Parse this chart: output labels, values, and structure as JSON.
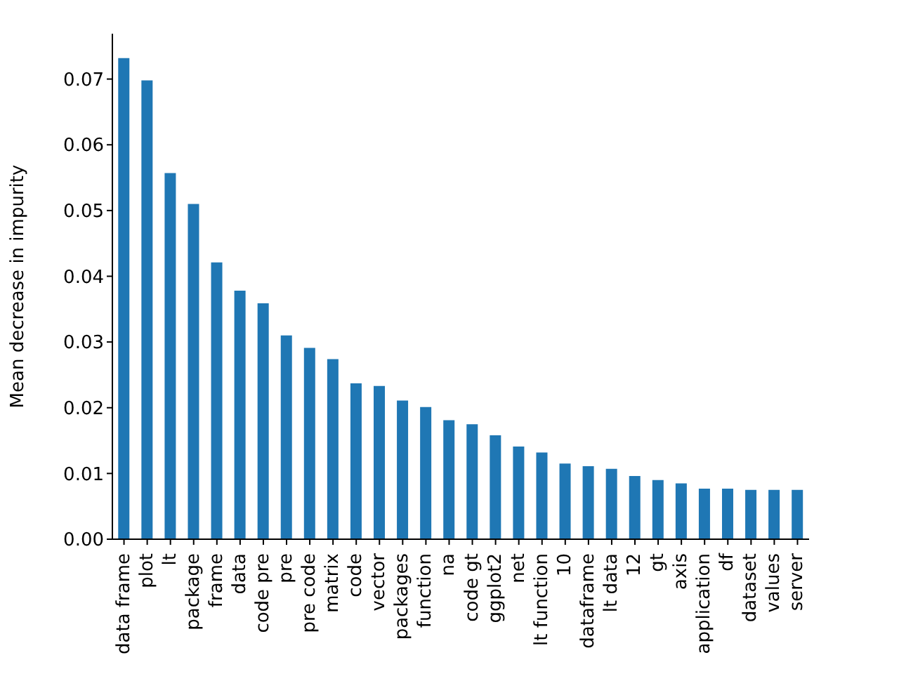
{
  "chart_data": {
    "type": "bar",
    "ylabel": "Mean decrease in impurity",
    "categories": [
      "data frame",
      "plot",
      "lt",
      "package",
      "frame",
      "data",
      "code pre",
      "pre",
      "pre code",
      "matrix",
      "code",
      "vector",
      "packages",
      "function",
      "na",
      "code gt",
      "ggplot2",
      "net",
      "lt function",
      "10",
      "dataframe",
      "lt data",
      "12",
      "gt",
      "axis",
      "application",
      "df",
      "dataset",
      "values",
      "server"
    ],
    "values": [
      0.0732,
      0.0698,
      0.0557,
      0.051,
      0.0421,
      0.0378,
      0.0359,
      0.031,
      0.0291,
      0.0274,
      0.0237,
      0.0233,
      0.0211,
      0.0201,
      0.0181,
      0.0175,
      0.0158,
      0.0141,
      0.0132,
      0.0115,
      0.0111,
      0.0107,
      0.0096,
      0.009,
      0.0085,
      0.0077,
      0.0077,
      0.0075,
      0.0075,
      0.0075
    ],
    "color": "#1f77b4",
    "ylim": [
      0,
      0.0769
    ],
    "yticks": [
      {
        "value": 0,
        "label": "0.00"
      },
      {
        "value": 0.01,
        "label": "0.01"
      },
      {
        "value": 0.02,
        "label": "0.02"
      },
      {
        "value": 0.03,
        "label": "0.03"
      },
      {
        "value": 0.04,
        "label": "0.04"
      },
      {
        "value": 0.05,
        "label": "0.05"
      },
      {
        "value": 0.06,
        "label": "0.06"
      },
      {
        "value": 0.07,
        "label": "0.07"
      }
    ],
    "grid": false,
    "legend": false
  }
}
